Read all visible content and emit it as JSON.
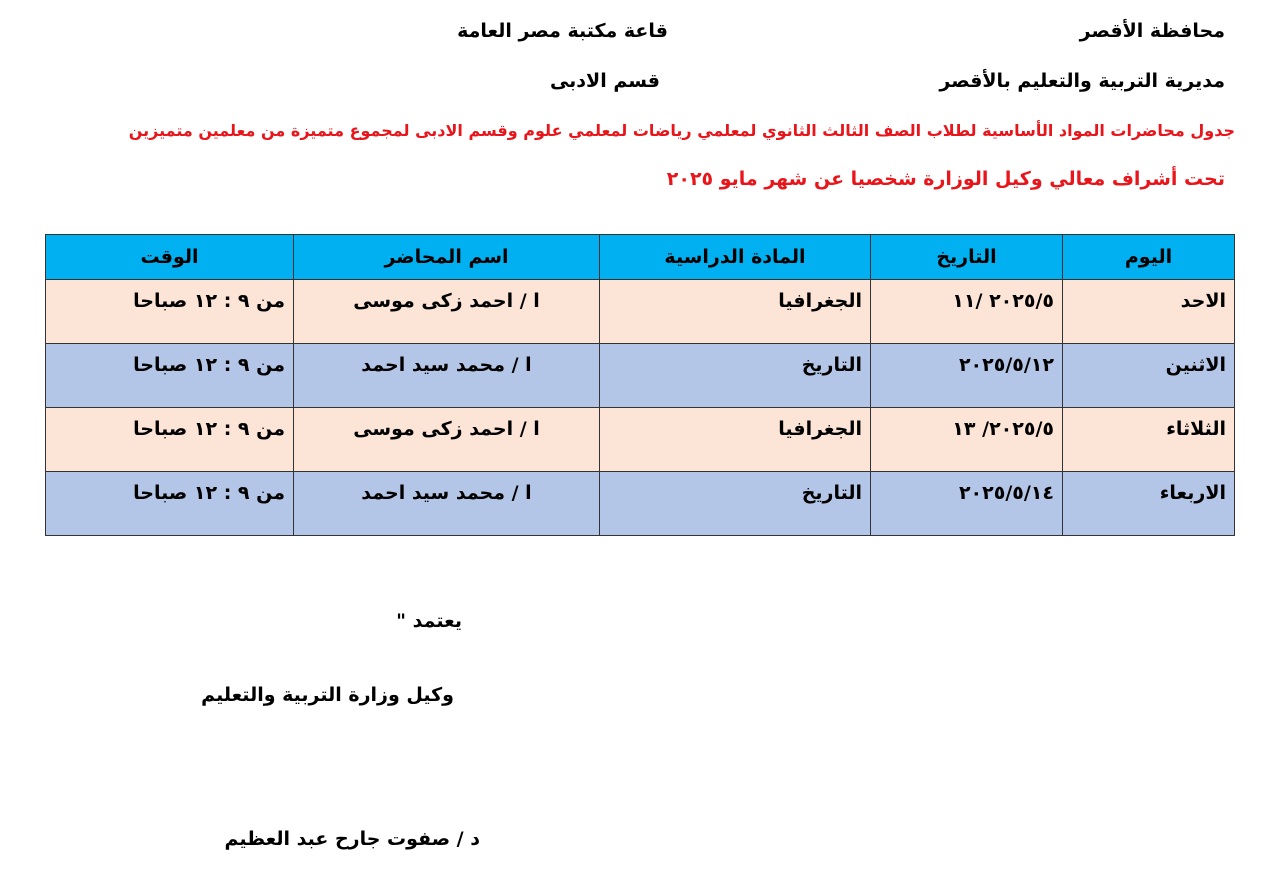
{
  "header": {
    "governorate": "محافظة الأقصر",
    "directorate": "مديرية التربية والتعليم بالأقصر",
    "venue": "قاعة مكتبة مصر العامة",
    "section": "قسم الادبى",
    "title_line1": "جدول محاضرات  المواد الأساسية لطلاب الصف الثالث الثانوي  لمعلمي رياضات لمعلمي علوم وقسم الادبى  لمجموع متميزة من معلمين متميزين",
    "title_line2": "تحت أشراف معالي وكيل الوزارة شخصيا عن شهر مايو ٢٠٢٥"
  },
  "table": {
    "columns": [
      "اليوم",
      "التاريخ",
      "المادة الدراسية",
      "اسم المحاضر",
      "الوقت"
    ],
    "rows": [
      [
        "الاحد",
        "٢٠٢٥/٥ /١١",
        "الجغرافيا",
        "ا / احمد زكى موسى",
        "من ٩ : ١٢ صباحا"
      ],
      [
        "الاثنين",
        "٢٠٢٥/٥/١٢",
        "التاريخ",
        "ا / محمد سيد احمد",
        "من ٩ : ١٢ صباحا"
      ],
      [
        "الثلاثاء",
        "٢٠٢٥/٥/ ١٣",
        "الجغرافيا",
        "ا / احمد زكى موسى",
        "من ٩ : ١٢ صباحا"
      ],
      [
        "الاربعاء",
        "٢٠٢٥/٥/١٤",
        "التاريخ",
        "ا / محمد سيد احمد",
        "من ٩ : ١٢ صباحا"
      ]
    ],
    "colors": {
      "header": "#00b0f0",
      "row_odd": "#fce4d6",
      "row_even": "#b4c6e7"
    }
  },
  "footer": {
    "approval": "يعتمد \"",
    "position": "وكيل وزارة التربية والتعليم",
    "signatory": "د / صفوت جارح عبد العظيم"
  }
}
